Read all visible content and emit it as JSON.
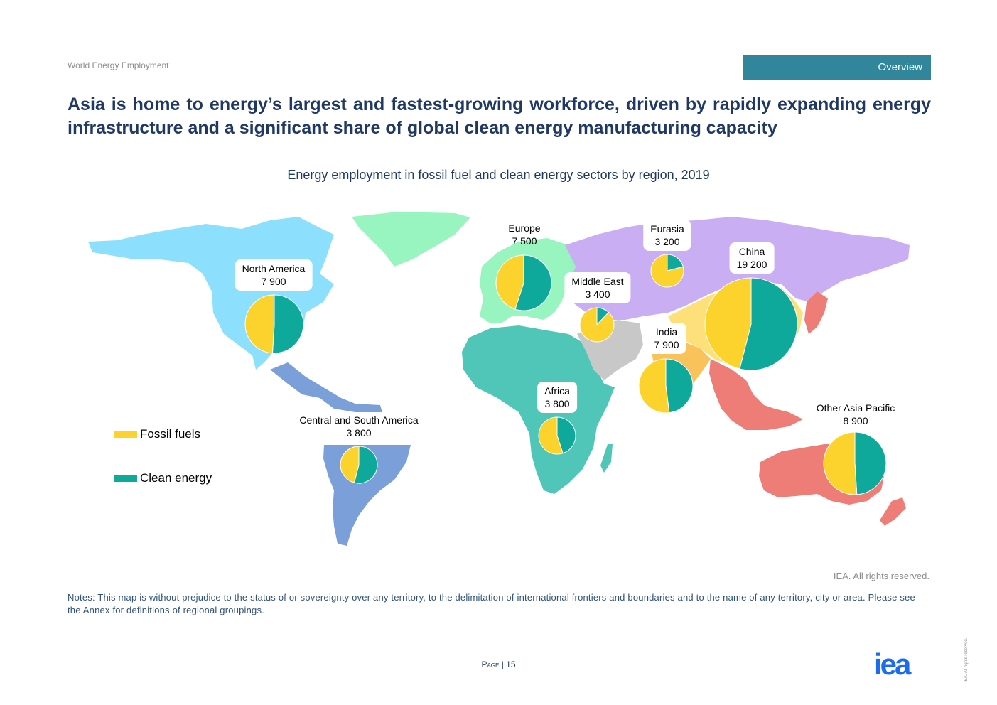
{
  "header": {
    "report_label": "World Energy Employment",
    "section_tab": "Overview"
  },
  "headline": "Asia is home to energy’s largest and fastest-growing workforce, driven by rapidly expanding energy infrastructure and a significant share of global clean energy manufacturing capacity",
  "colors": {
    "fossil": "#fcd32d",
    "clean": "#0fa99c",
    "title": "#1f3864",
    "tab": "#31869b",
    "logo": "#1c6cf2",
    "north_america": "#8ce0fd",
    "central_south_america": "#7b9fd9",
    "europe": "#98f5bf",
    "africa": "#4fc6b8",
    "middle_east": "#c8c8c8",
    "eurasia": "#c9aef3",
    "china": "#fde07a",
    "india": "#f9c25a",
    "other_asia_pacific": "#ee7d78"
  },
  "chart_data": {
    "type": "pie",
    "title": "Energy employment in fossil fuel and clean energy sectors by region, 2019",
    "legend": [
      "Fossil fuels",
      "Clean energy"
    ],
    "series": [
      {
        "region": "North America",
        "label": "7 900",
        "total": 7900,
        "fossil_share": 0.49,
        "clean_share": 0.51
      },
      {
        "region": "Central and South America",
        "label": "3 800",
        "total": 3800,
        "fossil_share": 0.46,
        "clean_share": 0.54
      },
      {
        "region": "Europe",
        "label": "7 500",
        "total": 7500,
        "fossil_share": 0.45,
        "clean_share": 0.55
      },
      {
        "region": "Africa",
        "label": "3 800",
        "total": 3800,
        "fossil_share": 0.55,
        "clean_share": 0.45
      },
      {
        "region": "Middle East",
        "label": "3 400",
        "total": 3400,
        "fossil_share": 0.88,
        "clean_share": 0.12
      },
      {
        "region": "Eurasia",
        "label": "3 200",
        "total": 3200,
        "fossil_share": 0.79,
        "clean_share": 0.21
      },
      {
        "region": "India",
        "label": "7 900",
        "total": 7900,
        "fossil_share": 0.52,
        "clean_share": 0.48
      },
      {
        "region": "China",
        "label": "19 200",
        "total": 19200,
        "fossil_share": 0.46,
        "clean_share": 0.54
      },
      {
        "region": "Other Asia Pacific",
        "label": "8 900",
        "total": 8900,
        "fossil_share": 0.51,
        "clean_share": 0.49
      }
    ]
  },
  "rights": "IEA. All rights reserved.",
  "notes": "Notes: This map is without prejudice to the status of or sovereignty over any territory, to the delimitation of international frontiers and boundaries and to the name of any territory, city or area. Please see the Annex for definitions of regional groupings.",
  "footer": {
    "page_label": "Page",
    "page_number": "15",
    "logo_text": "iea",
    "side_text": "IEA. All rights reserved."
  }
}
